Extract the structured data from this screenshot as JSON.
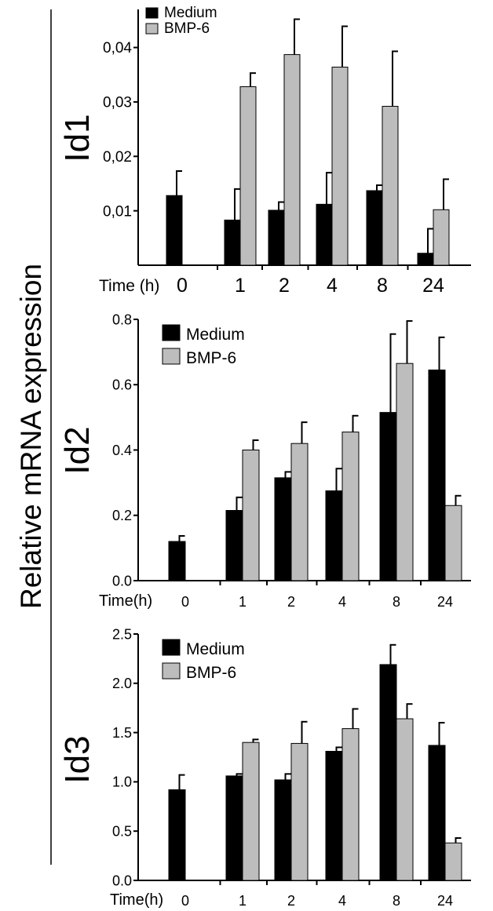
{
  "figure": {
    "ylabel": "Relative mRNA expression",
    "colors": {
      "medium": "#000000",
      "bmp6": "#bdbdbd",
      "axis": "#000000"
    }
  },
  "chart_data": [
    {
      "type": "bar",
      "panel_label": "Id1",
      "xlabel": "Time (h)",
      "categories": [
        "0",
        "1",
        "2",
        "4",
        "8",
        "24"
      ],
      "ylim": [
        0,
        0.047
      ],
      "yticks": [
        "0,01",
        "0,02",
        "0,03",
        "0,04"
      ],
      "ytick_values": [
        0.01,
        0.02,
        0.03,
        0.04
      ],
      "legend": {
        "placement": "top-left",
        "entries": [
          "Medium",
          "BMP-6"
        ]
      },
      "grid": false,
      "series": [
        {
          "name": "Medium",
          "values": [
            0.0128,
            0.0083,
            0.0101,
            0.0112,
            0.0137,
            0.0022
          ],
          "errors": [
            0.0045,
            0.0057,
            0.0015,
            0.0058,
            0.001,
            0.0045
          ]
        },
        {
          "name": "BMP-6",
          "values": [
            null,
            0.0328,
            0.0387,
            0.0364,
            0.0292,
            0.0102
          ],
          "errors": [
            null,
            0.0025,
            0.0065,
            0.0075,
            0.0101,
            0.0056
          ]
        }
      ]
    },
    {
      "type": "bar",
      "panel_label": "Id2",
      "xlabel": "Time(h)",
      "categories": [
        "0",
        "1",
        "2",
        "4",
        "8",
        "24"
      ],
      "ylim": [
        0,
        0.8
      ],
      "yticks": [
        "0.0",
        "0.2",
        "0.4",
        "0.6",
        "0.8"
      ],
      "ytick_values": [
        0,
        0.2,
        0.4,
        0.6,
        0.8
      ],
      "legend": {
        "placement": "top-left",
        "entries": [
          "Medium",
          "BMP-6"
        ]
      },
      "grid": false,
      "series": [
        {
          "name": "Medium",
          "values": [
            0.12,
            0.215,
            0.315,
            0.275,
            0.515,
            0.645
          ],
          "errors": [
            0.017,
            0.04,
            0.018,
            0.068,
            0.24,
            0.1
          ]
        },
        {
          "name": "BMP-6",
          "values": [
            null,
            0.4,
            0.42,
            0.455,
            0.665,
            0.23
          ],
          "errors": [
            null,
            0.03,
            0.065,
            0.05,
            0.13,
            0.03
          ]
        }
      ]
    },
    {
      "type": "bar",
      "panel_label": "Id3",
      "xlabel": "Time(h)",
      "categories": [
        "0",
        "1",
        "2",
        "4",
        "8",
        "24"
      ],
      "ylim": [
        0,
        2.5
      ],
      "yticks": [
        "0.0",
        "0.5",
        "1.0",
        "1.5",
        "2.0",
        "2.5"
      ],
      "ytick_values": [
        0,
        0.5,
        1.0,
        1.5,
        2.0,
        2.5
      ],
      "legend": {
        "placement": "top-left",
        "entries": [
          "Medium",
          "BMP-6"
        ]
      },
      "grid": false,
      "series": [
        {
          "name": "Medium",
          "values": [
            0.92,
            1.06,
            1.02,
            1.31,
            2.19,
            1.37
          ],
          "errors": [
            0.15,
            0.02,
            0.06,
            0.04,
            0.2,
            0.23
          ]
        },
        {
          "name": "BMP-6",
          "values": [
            null,
            1.4,
            1.39,
            1.54,
            1.64,
            0.38
          ],
          "errors": [
            null,
            0.03,
            0.22,
            0.2,
            0.15,
            0.05
          ]
        }
      ]
    }
  ]
}
